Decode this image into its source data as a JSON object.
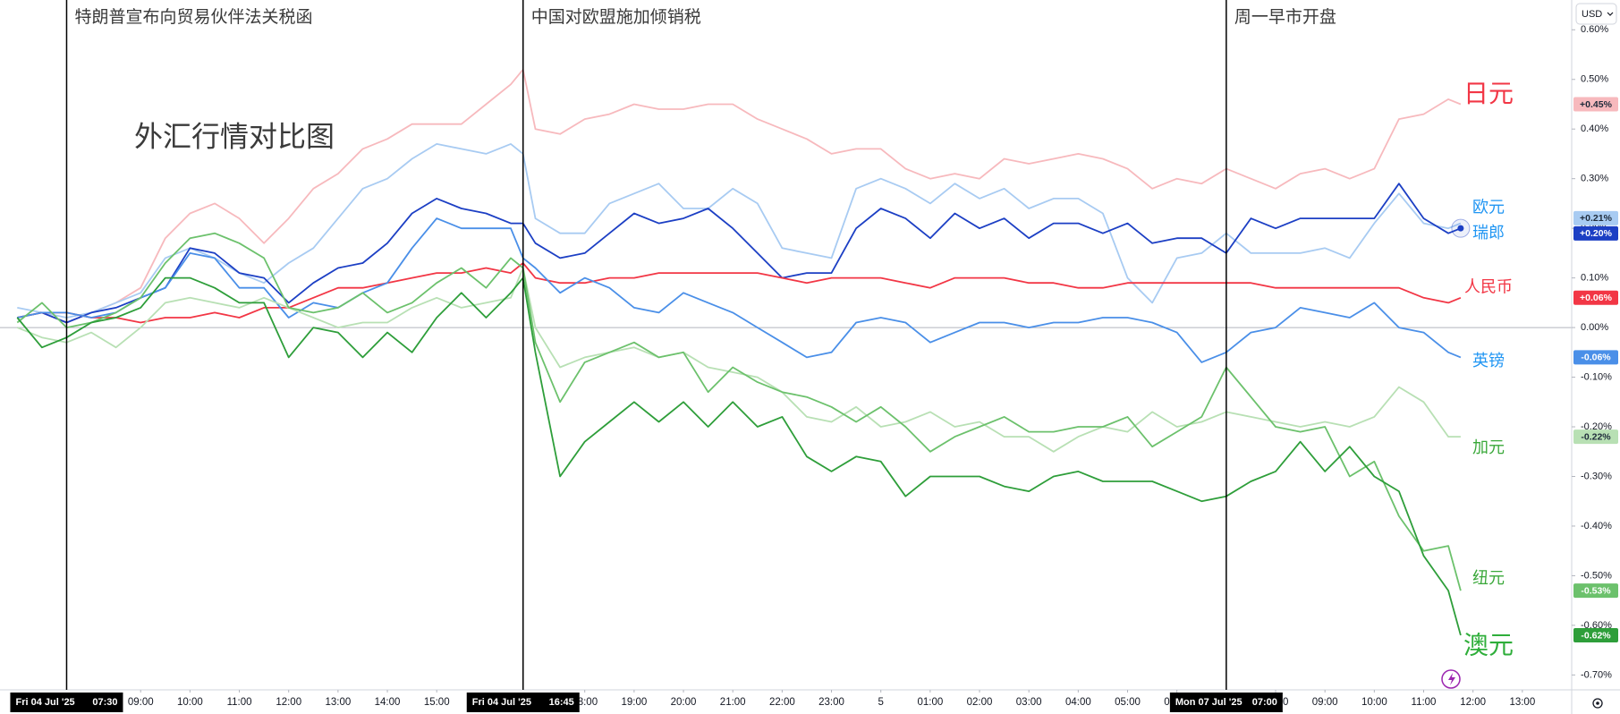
{
  "chart_data": {
    "type": "line",
    "title": "外汇行情对比图",
    "currency": "USD",
    "xlim": [
      6.15,
      38
    ],
    "ylim": [
      -0.73,
      0.66
    ],
    "grid": false,
    "baseline": 0,
    "xticks": [
      {
        "value": 9,
        "label": "09:00"
      },
      {
        "value": 10,
        "label": "10:00"
      },
      {
        "value": 11,
        "label": "11:00"
      },
      {
        "value": 12,
        "label": "12:00"
      },
      {
        "value": 13,
        "label": "13:00"
      },
      {
        "value": 14,
        "label": "14:00"
      },
      {
        "value": 15,
        "label": "15:00"
      },
      {
        "value": 18,
        "label": "18:00"
      },
      {
        "value": 19,
        "label": "19:00"
      },
      {
        "value": 20,
        "label": "20:00"
      },
      {
        "value": 21,
        "label": "21:00"
      },
      {
        "value": 22,
        "label": "22:00"
      },
      {
        "value": 23,
        "label": "23:00"
      },
      {
        "value": 24,
        "label": "5"
      },
      {
        "value": 25,
        "label": "01:00"
      },
      {
        "value": 26,
        "label": "02:00"
      },
      {
        "value": 27,
        "label": "03:00"
      },
      {
        "value": 28,
        "label": "04:00"
      },
      {
        "value": 29,
        "label": "05:00"
      },
      {
        "value": 30,
        "label": "06:00"
      },
      {
        "value": 32,
        "label": "08:00"
      },
      {
        "value": 33,
        "label": "09:00"
      },
      {
        "value": 34,
        "label": "10:00"
      },
      {
        "value": 35,
        "label": "11:00"
      },
      {
        "value": 36,
        "label": "12:00"
      },
      {
        "value": 37,
        "label": "13:00"
      }
    ],
    "yticks": [
      {
        "value": 0.6,
        "label": "0.60%"
      },
      {
        "value": 0.5,
        "label": "0.50%"
      },
      {
        "value": 0.4,
        "label": "0.40%"
      },
      {
        "value": 0.3,
        "label": "0.30%"
      },
      {
        "value": 0.2,
        "label": "0.20%"
      },
      {
        "value": 0.1,
        "label": "0.10%"
      },
      {
        "value": 0,
        "label": "0.00%"
      },
      {
        "value": -0.1,
        "label": "-0.10%"
      },
      {
        "value": -0.2,
        "label": "-0.20%"
      },
      {
        "value": -0.3,
        "label": "-0.30%"
      },
      {
        "value": -0.4,
        "label": "-0.40%"
      },
      {
        "value": -0.5,
        "label": "-0.50%"
      },
      {
        "value": -0.6,
        "label": "-0.60%"
      },
      {
        "value": -0.7,
        "label": "-0.70%"
      }
    ],
    "markers": [
      {
        "x": 7.5,
        "date": "Fri 04 Jul '25",
        "time": "07:30",
        "text": "特朗普宣布向贸易伙伴法关税函"
      },
      {
        "x": 16.75,
        "date": "Fri 04 Jul '25",
        "time": "16:45",
        "text": "中国对欧盟施加倾销税"
      },
      {
        "x": 31,
        "date": "Mon 07 Jul '25",
        "time": "07:00",
        "text": "周一早市开盘"
      }
    ],
    "x": [
      6.5,
      7,
      7.5,
      8,
      8.5,
      9,
      9.5,
      10,
      10.5,
      11,
      11.5,
      12,
      12.5,
      13,
      13.5,
      14,
      14.5,
      15,
      15.5,
      16,
      16.5,
      16.75,
      17,
      17.5,
      18,
      18.5,
      19,
      19.5,
      20,
      20.5,
      21,
      21.5,
      22,
      22.5,
      23,
      23.5,
      24,
      24.5,
      25,
      25.5,
      26,
      26.5,
      27,
      27.5,
      28,
      28.5,
      29,
      29.5,
      30,
      30.5,
      31,
      31.5,
      32,
      32.5,
      33,
      33.5,
      34,
      34.5,
      35,
      35.5,
      35.75
    ],
    "series": [
      {
        "name": "日元",
        "color": "#f7b9bd",
        "label_color": "#f23645",
        "end_label": "+0.45%",
        "values": [
          0.02,
          0.03,
          0.01,
          0.03,
          0.05,
          0.08,
          0.18,
          0.23,
          0.25,
          0.22,
          0.17,
          0.22,
          0.28,
          0.31,
          0.36,
          0.38,
          0.41,
          0.41,
          0.41,
          0.45,
          0.49,
          0.52,
          0.4,
          0.39,
          0.42,
          0.43,
          0.45,
          0.44,
          0.44,
          0.45,
          0.45,
          0.42,
          0.4,
          0.38,
          0.35,
          0.36,
          0.36,
          0.32,
          0.3,
          0.31,
          0.3,
          0.34,
          0.33,
          0.34,
          0.35,
          0.34,
          0.32,
          0.28,
          0.3,
          0.29,
          0.32,
          0.3,
          0.28,
          0.31,
          0.32,
          0.3,
          0.32,
          0.42,
          0.43,
          0.46,
          0.45
        ]
      },
      {
        "name": "欧元",
        "color": "#a8cbf2",
        "label_color": "#2196f3",
        "end_label": "+0.21%",
        "values": [
          0.04,
          0.03,
          0.02,
          0.03,
          0.05,
          0.07,
          0.14,
          0.16,
          0.14,
          0.11,
          0.09,
          0.13,
          0.16,
          0.22,
          0.28,
          0.3,
          0.34,
          0.37,
          0.36,
          0.35,
          0.37,
          0.35,
          0.22,
          0.19,
          0.19,
          0.25,
          0.27,
          0.29,
          0.24,
          0.24,
          0.28,
          0.25,
          0.16,
          0.15,
          0.14,
          0.28,
          0.3,
          0.28,
          0.25,
          0.29,
          0.26,
          0.28,
          0.24,
          0.26,
          0.26,
          0.23,
          0.1,
          0.05,
          0.14,
          0.15,
          0.19,
          0.15,
          0.15,
          0.15,
          0.16,
          0.14,
          0.21,
          0.27,
          0.21,
          0.2,
          0.21
        ]
      },
      {
        "name": "瑞郎",
        "color": "#1c3fc4",
        "label_color": "#2196f3",
        "end_label": "+0.20%",
        "end_marker": true,
        "values": [
          0.02,
          0.03,
          0.01,
          0.03,
          0.04,
          0.06,
          0.08,
          0.16,
          0.15,
          0.11,
          0.1,
          0.05,
          0.09,
          0.12,
          0.13,
          0.17,
          0.23,
          0.26,
          0.24,
          0.23,
          0.21,
          0.21,
          0.17,
          0.14,
          0.15,
          0.19,
          0.23,
          0.21,
          0.22,
          0.24,
          0.2,
          0.15,
          0.1,
          0.11,
          0.11,
          0.2,
          0.24,
          0.22,
          0.18,
          0.23,
          0.2,
          0.22,
          0.18,
          0.21,
          0.21,
          0.19,
          0.21,
          0.17,
          0.18,
          0.18,
          0.15,
          0.22,
          0.2,
          0.22,
          0.22,
          0.22,
          0.22,
          0.29,
          0.22,
          0.19,
          0.2
        ]
      },
      {
        "name": "人民币",
        "color": "#f23645",
        "label_color": "#f23645",
        "end_label": "+0.06%",
        "values": [
          0.02,
          0.03,
          0.03,
          0.02,
          0.02,
          0.01,
          0.02,
          0.02,
          0.03,
          0.02,
          0.04,
          0.04,
          0.06,
          0.08,
          0.08,
          0.09,
          0.1,
          0.11,
          0.11,
          0.12,
          0.11,
          0.13,
          0.1,
          0.09,
          0.09,
          0.1,
          0.1,
          0.11,
          0.11,
          0.11,
          0.11,
          0.11,
          0.1,
          0.09,
          0.1,
          0.1,
          0.1,
          0.09,
          0.08,
          0.1,
          0.1,
          0.1,
          0.09,
          0.09,
          0.08,
          0.08,
          0.09,
          0.09,
          0.09,
          0.09,
          0.09,
          0.09,
          0.08,
          0.08,
          0.08,
          0.08,
          0.08,
          0.08,
          0.06,
          0.05,
          0.06
        ]
      },
      {
        "name": "英镑",
        "color": "#4a8fe8",
        "label_color": "#2196f3",
        "end_label": "-0.06%",
        "values": [
          0.02,
          0.03,
          0.03,
          0.02,
          0.03,
          0.06,
          0.08,
          0.15,
          0.14,
          0.08,
          0.08,
          0.02,
          0.05,
          0.04,
          0.07,
          0.09,
          0.16,
          0.22,
          0.2,
          0.2,
          0.2,
          0.14,
          0.12,
          0.07,
          0.1,
          0.08,
          0.04,
          0.03,
          0.07,
          0.05,
          0.03,
          0.0,
          -0.03,
          -0.06,
          -0.05,
          0.01,
          0.02,
          0.01,
          -0.03,
          -0.01,
          0.01,
          0.01,
          0.0,
          0.01,
          0.01,
          0.02,
          0.02,
          0.01,
          -0.01,
          -0.07,
          -0.05,
          -0.01,
          0.0,
          0.04,
          0.03,
          0.02,
          0.05,
          0.0,
          -0.01,
          -0.05,
          -0.06
        ]
      },
      {
        "name": "加元",
        "color": "#b8e0b4",
        "label_color": "#3aa83a",
        "end_label": "-0.22%",
        "values": [
          0.0,
          -0.02,
          -0.03,
          -0.01,
          -0.04,
          0.0,
          0.05,
          0.06,
          0.05,
          0.04,
          0.06,
          0.04,
          0.02,
          0.0,
          0.01,
          0.01,
          0.04,
          0.06,
          0.04,
          0.05,
          0.06,
          0.12,
          0.0,
          -0.08,
          -0.06,
          -0.05,
          -0.04,
          -0.06,
          -0.05,
          -0.08,
          -0.09,
          -0.1,
          -0.13,
          -0.18,
          -0.19,
          -0.16,
          -0.2,
          -0.19,
          -0.17,
          -0.2,
          -0.19,
          -0.22,
          -0.22,
          -0.25,
          -0.22,
          -0.2,
          -0.21,
          -0.17,
          -0.2,
          -0.19,
          -0.17,
          -0.18,
          -0.19,
          -0.2,
          -0.19,
          -0.2,
          -0.18,
          -0.12,
          -0.15,
          -0.22,
          -0.22
        ]
      },
      {
        "name": "纽元",
        "color": "#6cc16c",
        "label_color": "#3aa83a",
        "end_label": "-0.53%",
        "values": [
          0.01,
          0.05,
          0.0,
          0.01,
          0.03,
          0.06,
          0.13,
          0.18,
          0.19,
          0.17,
          0.14,
          0.04,
          0.03,
          0.04,
          0.07,
          0.03,
          0.05,
          0.09,
          0.12,
          0.08,
          0.14,
          0.12,
          -0.03,
          -0.15,
          -0.07,
          -0.05,
          -0.03,
          -0.06,
          -0.05,
          -0.13,
          -0.08,
          -0.11,
          -0.13,
          -0.14,
          -0.16,
          -0.19,
          -0.16,
          -0.2,
          -0.25,
          -0.22,
          -0.2,
          -0.18,
          -0.21,
          -0.21,
          -0.2,
          -0.2,
          -0.18,
          -0.24,
          -0.21,
          -0.18,
          -0.08,
          -0.14,
          -0.2,
          -0.21,
          -0.2,
          -0.3,
          -0.27,
          -0.38,
          -0.45,
          -0.44,
          -0.53
        ]
      },
      {
        "name": "澳元",
        "color": "#2e9e3a",
        "label_color": "#2eae3a",
        "end_label": "-0.62%",
        "values": [
          0.02,
          -0.04,
          -0.02,
          0.01,
          0.02,
          0.04,
          0.1,
          0.1,
          0.08,
          0.05,
          0.05,
          -0.06,
          0.0,
          -0.01,
          -0.06,
          -0.01,
          -0.05,
          0.02,
          0.07,
          0.02,
          0.07,
          0.1,
          -0.05,
          -0.3,
          -0.23,
          -0.19,
          -0.15,
          -0.19,
          -0.15,
          -0.2,
          -0.15,
          -0.2,
          -0.18,
          -0.26,
          -0.29,
          -0.26,
          -0.27,
          -0.34,
          -0.3,
          -0.3,
          -0.3,
          -0.32,
          -0.33,
          -0.3,
          -0.29,
          -0.31,
          -0.31,
          -0.31,
          -0.33,
          -0.35,
          -0.34,
          -0.31,
          -0.29,
          -0.23,
          -0.29,
          -0.24,
          -0.3,
          -0.33,
          -0.46,
          -0.53,
          -0.62
        ]
      }
    ]
  }
}
